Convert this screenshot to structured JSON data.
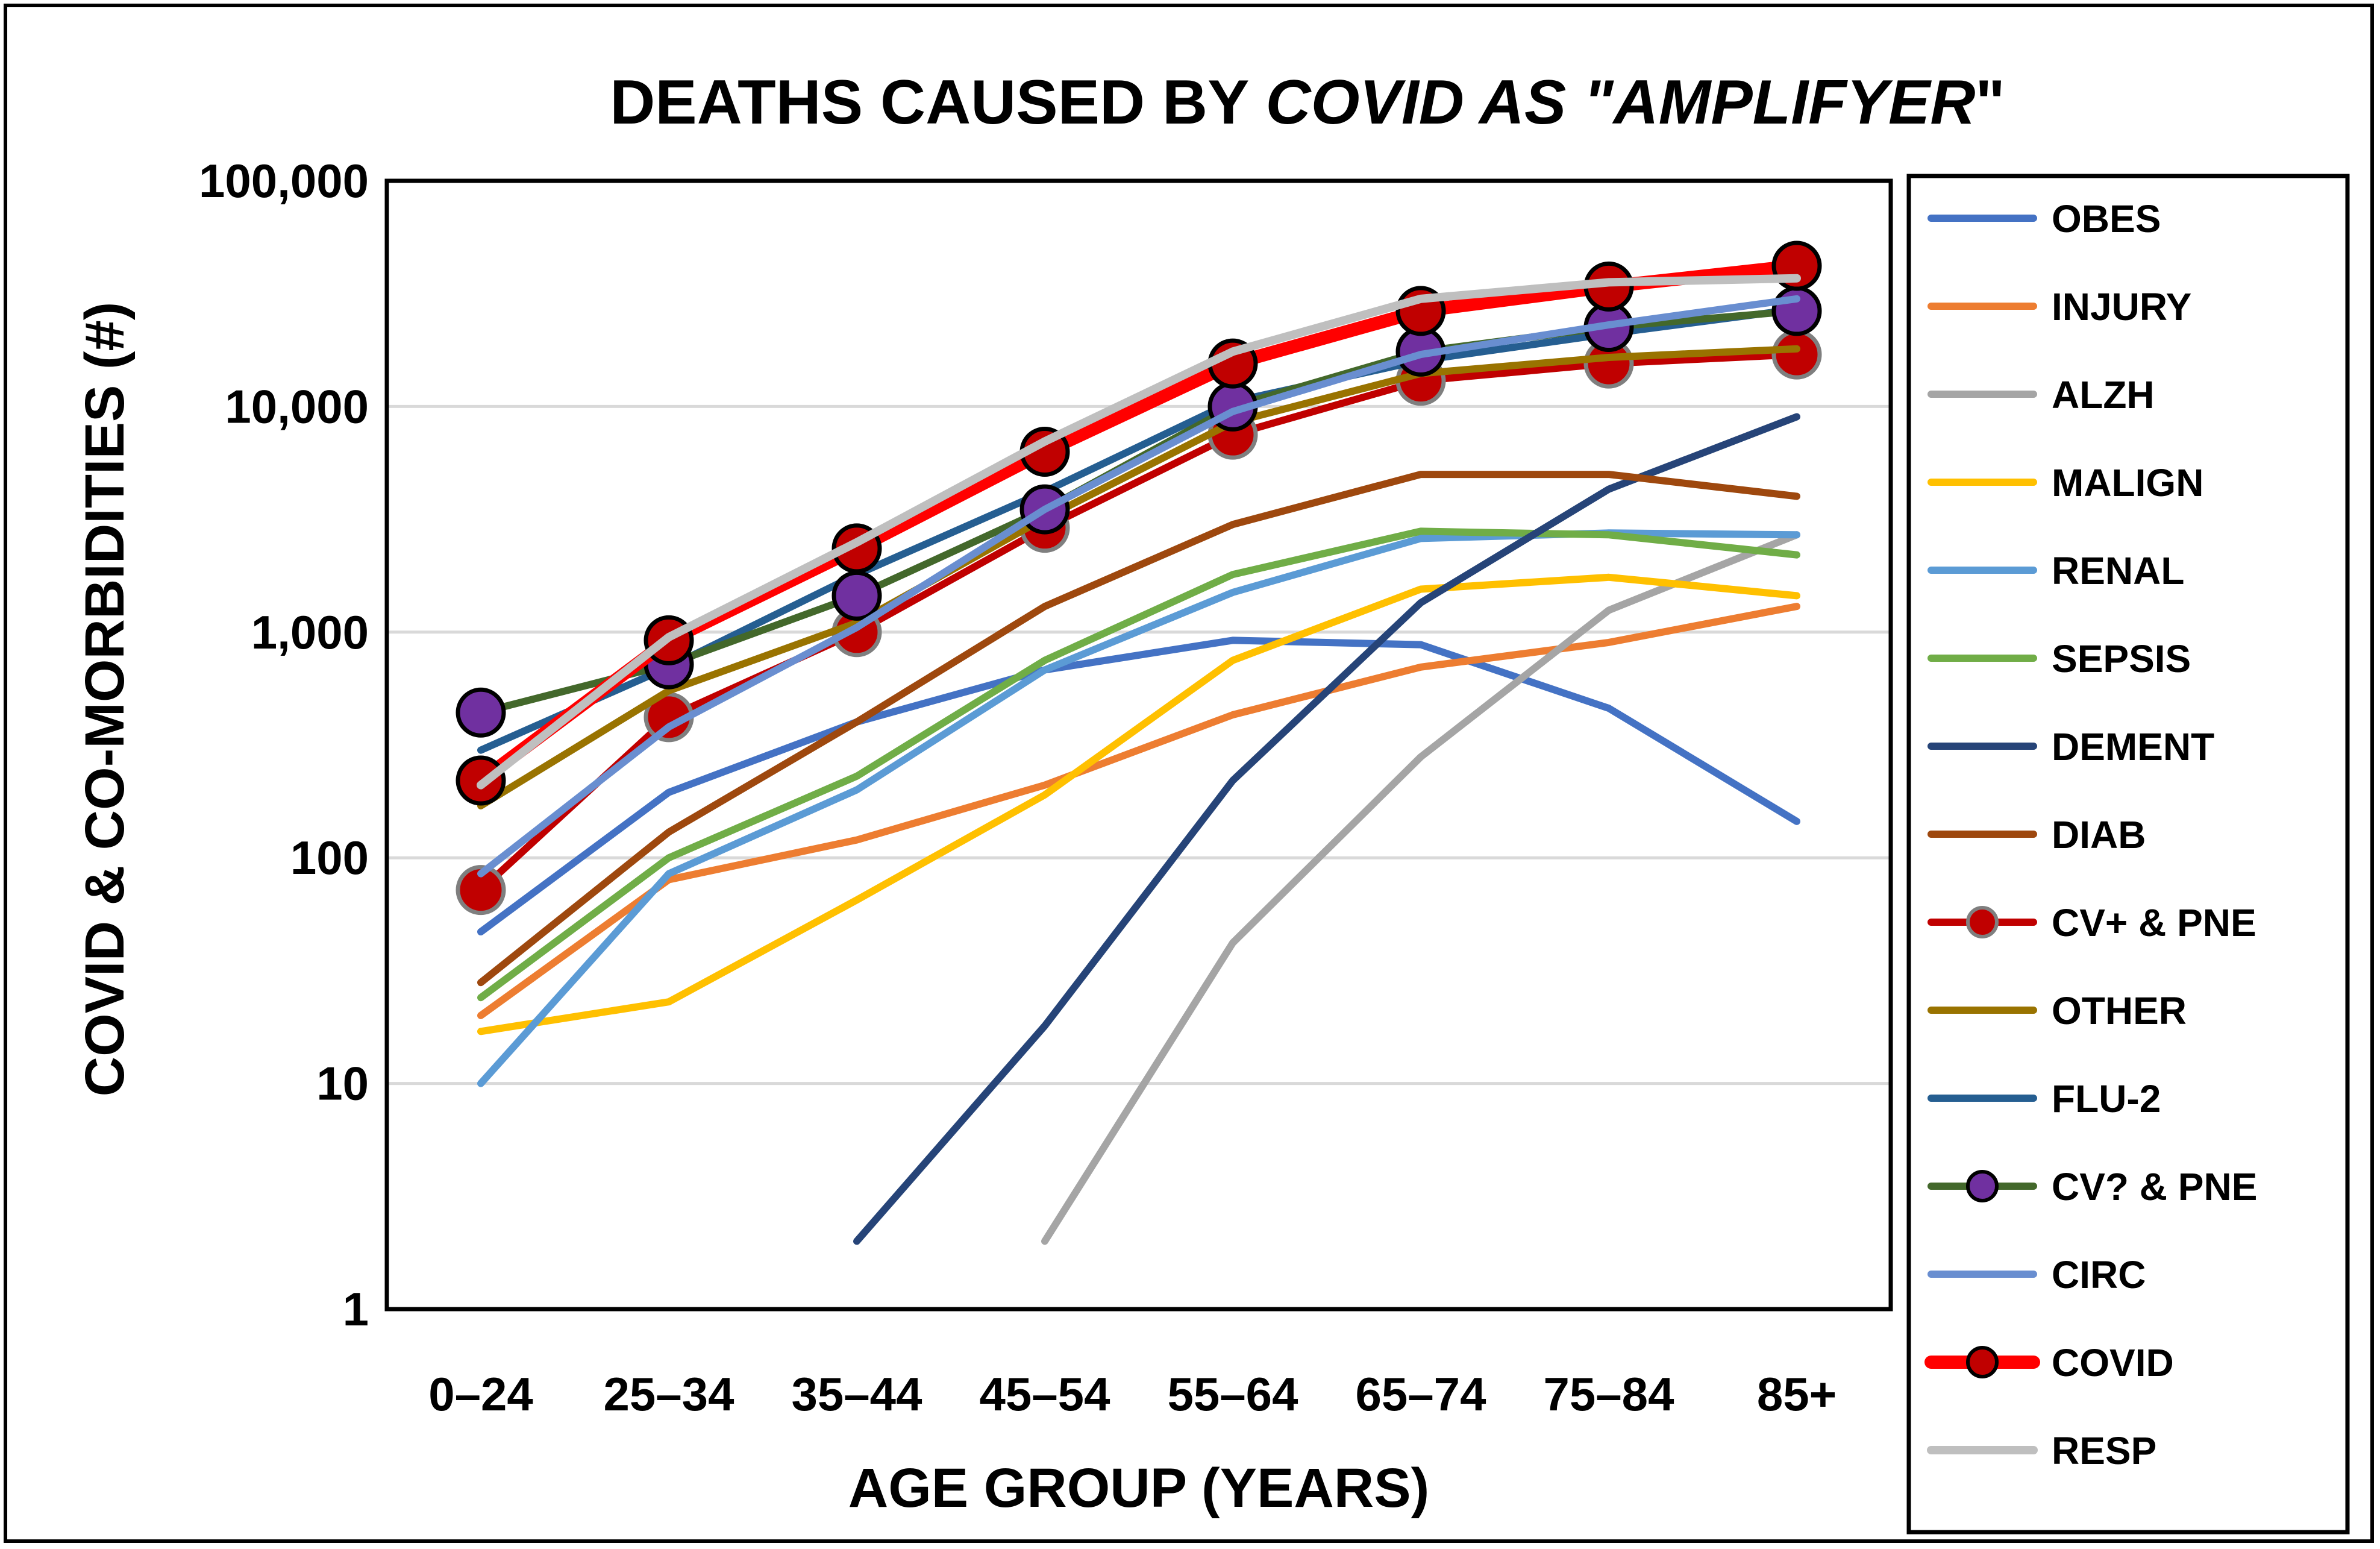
{
  "chart_data": {
    "type": "line",
    "title": {
      "prefix": "DEATHS CAUSED BY ",
      "italic": "COVID AS \"AMPLIFYER",
      "suffix": "\""
    },
    "xlabel": "AGE GROUP (YEARS)",
    "ylabel": "COVID & CO-MORBIDITIES (#)",
    "yscale": "log",
    "ylim": [
      1,
      100000
    ],
    "yticks": [
      {
        "value": 1,
        "label": "1"
      },
      {
        "value": 10,
        "label": "10"
      },
      {
        "value": 100,
        "label": "100"
      },
      {
        "value": 1000,
        "label": "1,000"
      },
      {
        "value": 10000,
        "label": "10,000"
      },
      {
        "value": 100000,
        "label": "100,000"
      }
    ],
    "grid": true,
    "legend_position": "right",
    "categories": [
      "0–24",
      "25–34",
      "35–44",
      "45–54",
      "55–64",
      "65–74",
      "75–84",
      "85+"
    ],
    "series": [
      {
        "name": "OBES",
        "color": "#4472C4",
        "width": 12,
        "marker": "none",
        "values": [
          47,
          195,
          400,
          680,
          920,
          880,
          460,
          145
        ]
      },
      {
        "name": "INJURY",
        "color": "#ED7D31",
        "width": 12,
        "marker": "none",
        "values": [
          20,
          80,
          120,
          210,
          430,
          700,
          900,
          1300
        ]
      },
      {
        "name": "ALZH",
        "color": "#A5A5A5",
        "width": 12,
        "marker": "none",
        "values": [
          null,
          null,
          null,
          2,
          42,
          280,
          1250,
          2700
        ]
      },
      {
        "name": "MALIGN",
        "color": "#FFC000",
        "width": 12,
        "marker": "none",
        "values": [
          17,
          23,
          65,
          190,
          750,
          1550,
          1750,
          1450
        ]
      },
      {
        "name": "RENAL",
        "color": "#5B9BD5",
        "width": 12,
        "marker": "none",
        "values": [
          10,
          85,
          200,
          680,
          1500,
          2600,
          2750,
          2700
        ]
      },
      {
        "name": "SEPSIS",
        "color": "#70AD47",
        "width": 12,
        "marker": "none",
        "values": [
          24,
          100,
          230,
          750,
          1800,
          2800,
          2700,
          2200
        ]
      },
      {
        "name": "DEMENT",
        "color": "#264478",
        "width": 12,
        "marker": "none",
        "values": [
          null,
          null,
          2,
          18,
          220,
          1350,
          4300,
          9000
        ]
      },
      {
        "name": "DIAB",
        "color": "#9E480E",
        "width": 12,
        "marker": "none",
        "values": [
          28,
          130,
          400,
          1300,
          3000,
          5000,
          5000,
          4000
        ]
      },
      {
        "name": "CV+ & PNE",
        "color": "#C00000",
        "width": 12,
        "marker": "circle",
        "marker_fill": "#C00000",
        "marker_stroke": "#7F7F7F",
        "values": [
          72,
          420,
          1000,
          2900,
          7500,
          13000,
          15500,
          17000
        ]
      },
      {
        "name": "OTHER",
        "color": "#997300",
        "width": 12,
        "marker": "none",
        "values": [
          170,
          550,
          1100,
          3200,
          8500,
          14000,
          16500,
          18000
        ]
      },
      {
        "name": "FLU-2",
        "color": "#255E91",
        "width": 12,
        "marker": "none",
        "values": [
          300,
          700,
          1800,
          4200,
          10500,
          16000,
          21000,
          27000
        ]
      },
      {
        "name": "CV? & PNE",
        "color": "#43682B",
        "width": 12,
        "marker": "circle",
        "marker_fill": "#7030A0",
        "marker_stroke": "#000000",
        "values": [
          440,
          720,
          1450,
          3500,
          10000,
          17500,
          22500,
          26500
        ]
      },
      {
        "name": "CIRC",
        "color": "#698ED0",
        "width": 12,
        "marker": "none",
        "values": [
          85,
          380,
          1050,
          3500,
          9500,
          17000,
          23000,
          30000
        ]
      },
      {
        "name": "COVID",
        "color": "#FF0000",
        "width": 22,
        "marker": "circle",
        "marker_fill": "#C00000",
        "marker_stroke": "#000000",
        "values": [
          220,
          920,
          2350,
          6300,
          15500,
          26500,
          34000,
          42000
        ]
      },
      {
        "name": "RESP",
        "color": "#BFBFBF",
        "width": 14,
        "marker": "none",
        "values": [
          210,
          950,
          2500,
          7000,
          17500,
          30000,
          35500,
          37000
        ]
      }
    ]
  }
}
